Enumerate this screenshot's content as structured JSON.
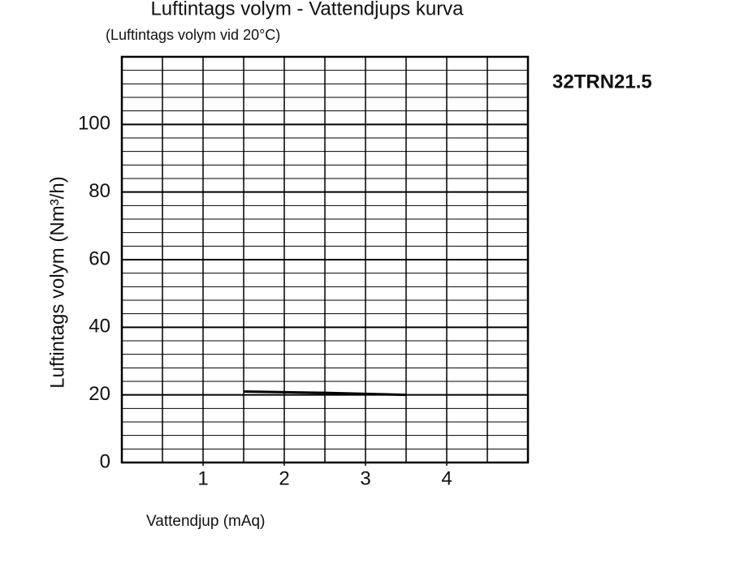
{
  "chart_data": {
    "type": "line",
    "title": "Luftintags volym - Vattendjups kurva",
    "subtitle": "(Luftintags volym vid 20°C)",
    "annotation": "32TRN21.5",
    "x_label": "Vattendjup (mAq)",
    "y_label": "Luftintags volym (Nm³/h)",
    "x": [
      1.5,
      2.5,
      3.5
    ],
    "series": [
      {
        "name": "32TRN21.5",
        "color": "#000000",
        "values": [
          21,
          20.6,
          20
        ]
      }
    ],
    "xlim": [
      0,
      5
    ],
    "xticks": [
      1,
      2,
      3,
      4
    ],
    "ylim": [
      0,
      120
    ],
    "yticks": [
      0,
      20,
      40,
      60,
      80,
      100
    ],
    "grid": true
  }
}
